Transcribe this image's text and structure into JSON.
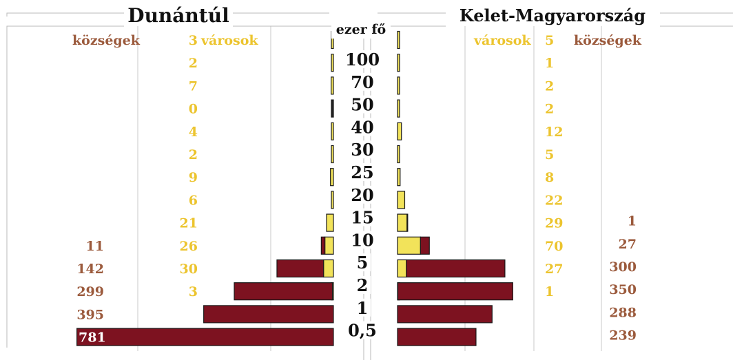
{
  "chart_data": {
    "type": "bar",
    "orientation": "horizontal",
    "layout": "population pyramid",
    "left_title": "Dunántúl",
    "right_title": "Kelet-Magyarország",
    "center_label": "ezer fő",
    "left_headers": {
      "villages": "községek",
      "towns": "városok"
    },
    "right_headers": {
      "villages": "községek",
      "towns": "városok"
    },
    "size_labels": [
      "100",
      "70",
      "50",
      "40",
      "30",
      "25",
      "20",
      "15",
      "10",
      "5",
      "2",
      "1",
      "0,5"
    ],
    "rows": [
      {
        "left_towns": 3,
        "right_towns": 5
      },
      {
        "left_towns": 2,
        "right_towns": 1
      },
      {
        "left_towns": 7,
        "right_towns": 2
      },
      {
        "left_towns": 0,
        "right_towns": 2
      },
      {
        "left_towns": 4,
        "right_towns": 12
      },
      {
        "left_towns": 2,
        "right_towns": 5
      },
      {
        "left_towns": 9,
        "right_towns": 8
      },
      {
        "left_towns": 6,
        "right_towns": 22
      },
      {
        "left_towns": 21,
        "right_towns": 29,
        "right_villages": 1
      },
      {
        "left_towns": 26,
        "left_villages": 11,
        "right_towns": 70,
        "right_villages": 27
      },
      {
        "left_towns": 30,
        "left_villages": 142,
        "right_towns": 27,
        "right_villages": 300
      },
      {
        "left_towns": 3,
        "left_villages": 299,
        "right_towns": 1,
        "right_villages": 350
      },
      {
        "left_villages": 395,
        "right_villages": 288
      },
      {
        "left_villages": 781,
        "right_villages": 239
      }
    ],
    "colors": {
      "villages": "#7d1220",
      "towns": "#f2e35a",
      "village_label": "#9b5a3c",
      "town_label": "#ecc42e"
    }
  }
}
